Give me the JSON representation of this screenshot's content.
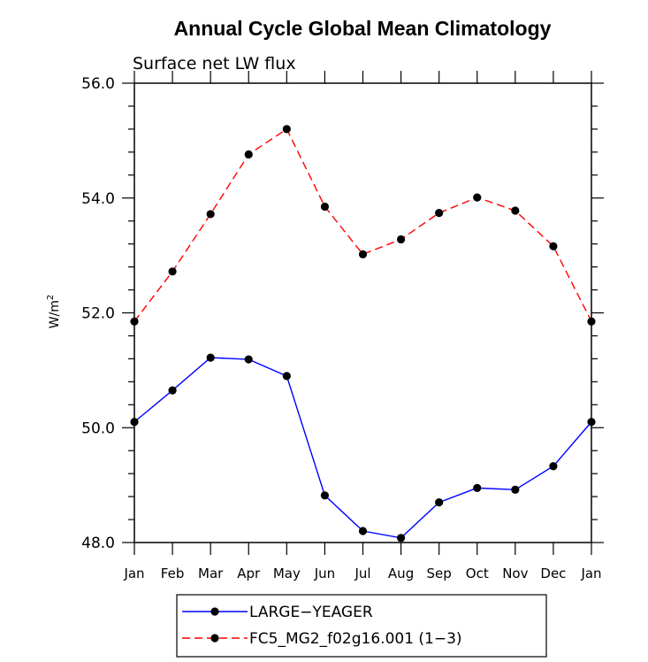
{
  "chart_data": {
    "type": "line",
    "title": "Annual Cycle Global Mean Climatology",
    "subtitle": "Surface net LW flux",
    "ylabel": "W/m",
    "ylabel_sup": "2",
    "xlabel": "",
    "categories": [
      "Jan",
      "Feb",
      "Mar",
      "Apr",
      "May",
      "Jun",
      "Jul",
      "Aug",
      "Sep",
      "Oct",
      "Nov",
      "Dec",
      "Jan"
    ],
    "ylim": [
      48.0,
      56.0
    ],
    "ytick_labels": [
      "48.0",
      "50.0",
      "52.0",
      "54.0",
      "56.0"
    ],
    "yticks": [
      48,
      50,
      52,
      54,
      56
    ],
    "series": [
      {
        "name": "LARGE−YEAGER",
        "color": "#0000ff",
        "dash": "solid",
        "values": [
          50.1,
          50.65,
          51.22,
          51.19,
          50.9,
          48.82,
          48.2,
          48.08,
          48.7,
          48.95,
          48.92,
          49.33,
          50.1
        ]
      },
      {
        "name": "FC5_MG2_f02g16.001 (1−3)",
        "color": "#ff0000",
        "dash": "dashed",
        "values": [
          51.85,
          52.72,
          53.72,
          54.76,
          55.2,
          53.85,
          53.02,
          53.28,
          53.74,
          54.01,
          53.78,
          53.16,
          51.85
        ]
      }
    ],
    "grid": false,
    "legend_position": "bottom"
  }
}
